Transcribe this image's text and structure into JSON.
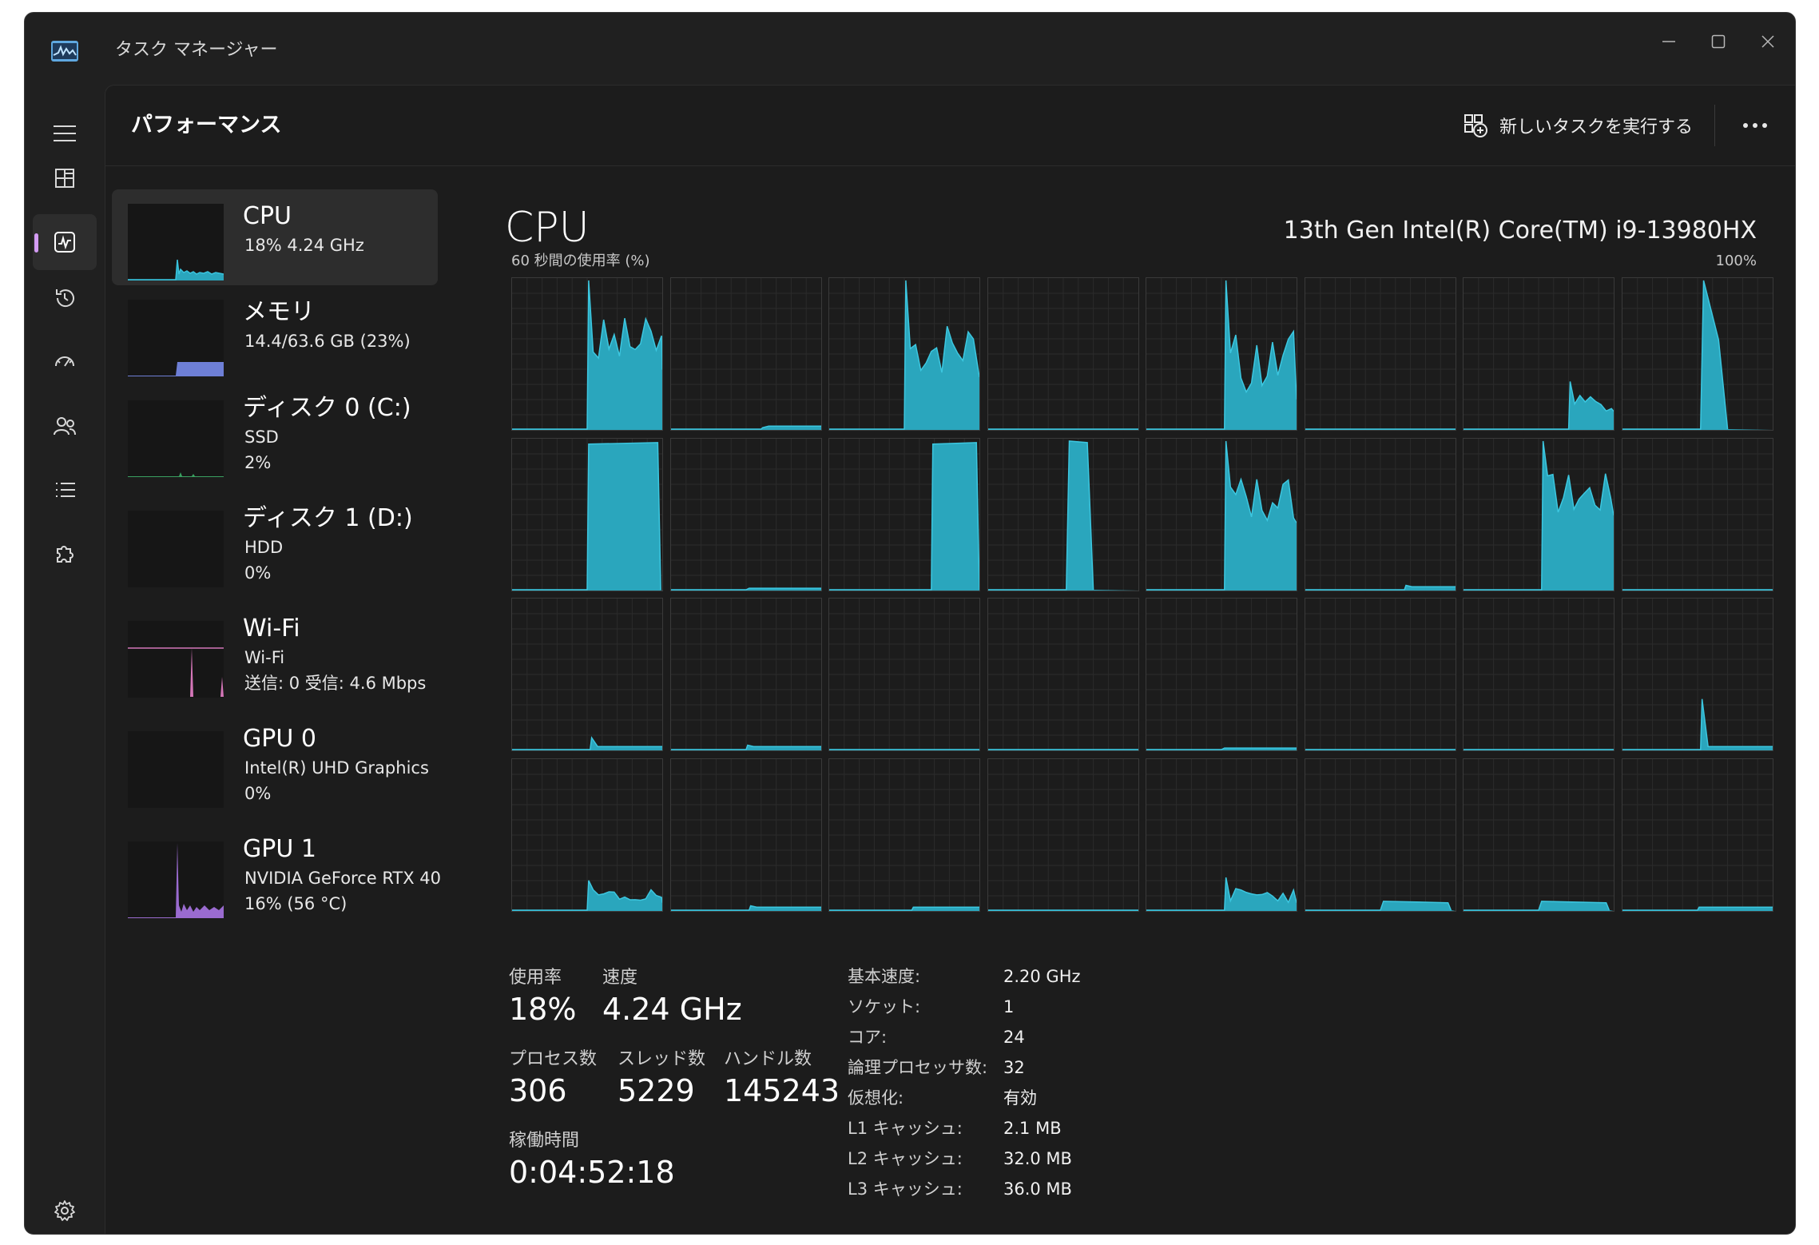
{
  "window": {
    "title": "タスク マネージャー"
  },
  "header": {
    "title": "パフォーマンス",
    "run_task_label": "新しいタスクを実行する"
  },
  "colors": {
    "cpu": "#2aa6bd",
    "memory": "#6e7fd6",
    "disk": "#3aa060",
    "wifi": "#d476b8",
    "gpu": "#9a6bd0",
    "accent": "#d39bf3"
  },
  "sidebar": {
    "items": [
      {
        "name": "CPU",
        "sub1": "18%  4.24 GHz",
        "sub2": ""
      },
      {
        "name": "メモリ",
        "sub1": "14.4/63.6 GB (23%)",
        "sub2": ""
      },
      {
        "name": "ディスク 0 (C:)",
        "sub1": "SSD",
        "sub2": "2%"
      },
      {
        "name": "ディスク 1 (D:)",
        "sub1": "HDD",
        "sub2": "0%"
      },
      {
        "name": "Wi-Fi",
        "sub1": "Wi-Fi",
        "sub2": "送信: 0  受信: 4.6 Mbps"
      },
      {
        "name": "GPU 0",
        "sub1": "Intel(R) UHD Graphics",
        "sub2": "0%"
      },
      {
        "name": "GPU 1",
        "sub1": "NVIDIA GeForce RTX 40",
        "sub2": "16%  (56 °C)"
      }
    ]
  },
  "main": {
    "title": "CPU",
    "model": "13th Gen Intel(R) Core(TM) i9-13980HX",
    "graph_label": "60 秒間の使用率 (%)",
    "graph_max": "100%"
  },
  "stats": {
    "usage_label": "使用率",
    "usage_value": "18%",
    "speed_label": "速度",
    "speed_value": "4.24 GHz",
    "processes_label": "プロセス数",
    "processes_value": "306",
    "threads_label": "スレッド数",
    "threads_value": "5229",
    "handles_label": "ハンドル数",
    "handles_value": "145243",
    "uptime_label": "稼働時間",
    "uptime_value": "0:04:52:18"
  },
  "info": [
    {
      "key": "基本速度:",
      "value": "2.20 GHz"
    },
    {
      "key": "ソケット:",
      "value": "1"
    },
    {
      "key": "コア:",
      "value": "24"
    },
    {
      "key": "論理プロセッサ数:",
      "value": "32"
    },
    {
      "key": "仮想化:",
      "value": "有効"
    },
    {
      "key": "L1 キャッシュ:",
      "value": "2.1 MB"
    },
    {
      "key": "L2 キャッシュ:",
      "value": "32.0 MB"
    },
    {
      "key": "L3 キャッシュ:",
      "value": "36.0 MB"
    }
  ]
}
